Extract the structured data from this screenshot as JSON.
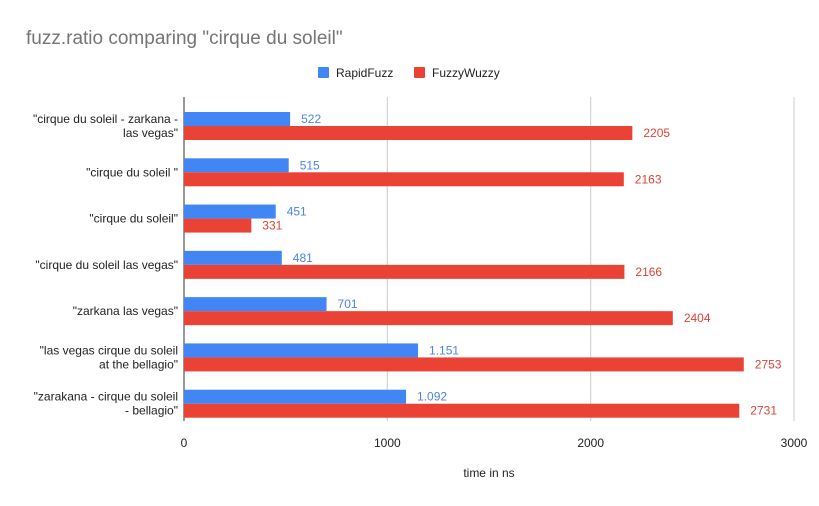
{
  "chart_data": {
    "type": "bar",
    "orientation": "horizontal",
    "title": "fuzz.ratio comparing \"cirque du soleil\"",
    "xlabel": "time in ns",
    "ylabel": "",
    "xlim": [
      0,
      3000
    ],
    "x_ticks": [
      "0",
      "1000",
      "2000",
      "3000"
    ],
    "grid": true,
    "legend_position": "top",
    "categories": [
      [
        "\"cirque du soleil - zarkana -",
        "las vegas\""
      ],
      [
        "\"cirque du soleil \""
      ],
      [
        "\"cirque du soleil\""
      ],
      [
        "\"cirque du soleil las vegas\""
      ],
      [
        "\"zarkana las vegas\""
      ],
      [
        "\"las vegas cirque du soleil",
        "at the bellagio\""
      ],
      [
        "\"zarakana - cirque du soleil",
        "- bellagio\""
      ]
    ],
    "series": [
      {
        "name": "RapidFuzz",
        "color": "#4285f4",
        "label_color": "#4a86e8",
        "values": [
          522,
          515,
          451,
          481,
          701,
          1151,
          1092
        ],
        "labels": [
          "522",
          "515",
          "451",
          "481",
          "701",
          "1.151",
          "1.092"
        ]
      },
      {
        "name": "FuzzyWuzzy",
        "color": "#ea4335",
        "label_color": "#db4437",
        "values": [
          2205,
          2163,
          331,
          2166,
          2404,
          2753,
          2731
        ],
        "labels": [
          "2205",
          "2163",
          "331",
          "2166",
          "2404",
          "2753",
          "2731"
        ]
      }
    ]
  }
}
